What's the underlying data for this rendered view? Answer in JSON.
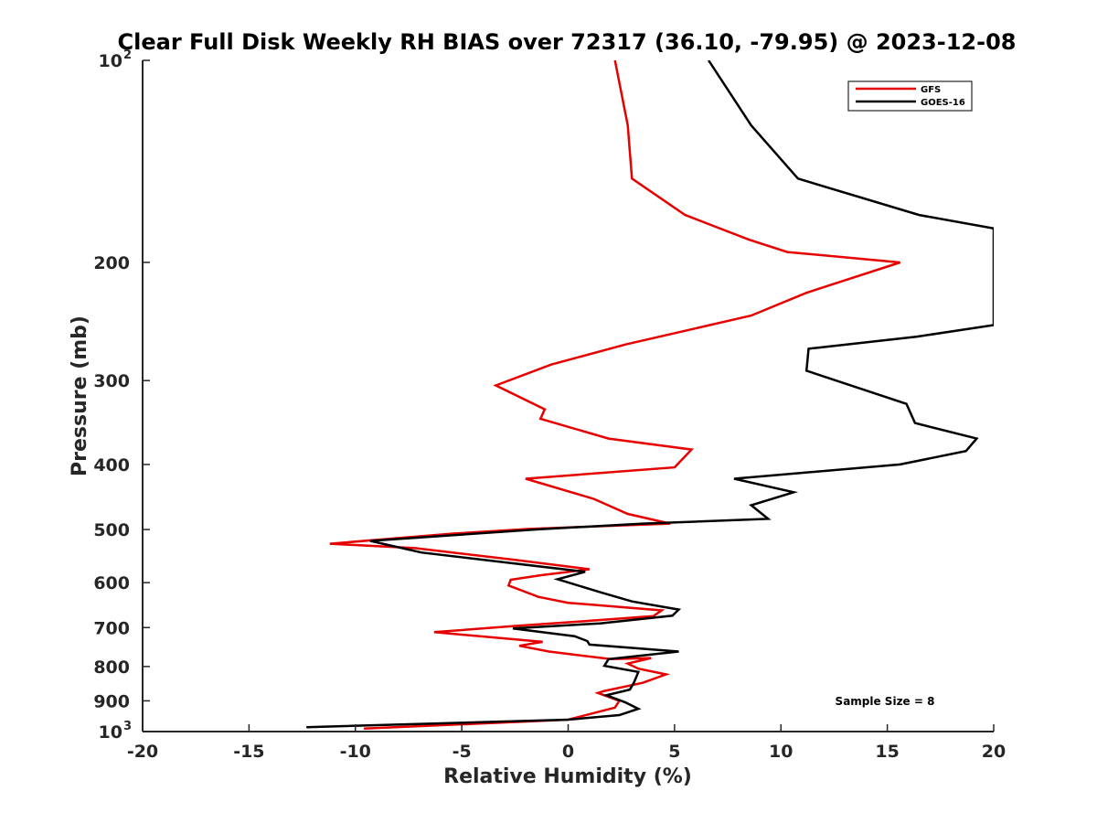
{
  "chart_data": {
    "type": "line",
    "title": "Clear Full Disk Weekly RH BIAS over 72317 (36.10, -79.95) @ 2023-12-08",
    "xlabel": "Relative Humidity (%)",
    "ylabel": "Pressure (mb)",
    "xlim": [
      -20,
      20
    ],
    "ylim": [
      100,
      1000
    ],
    "yscale": "log",
    "y_reversed": true,
    "grid": false,
    "legend_position": "top-right",
    "x_ticks": [
      "-20",
      "-15",
      "-10",
      "-5",
      "0",
      "5",
      "10",
      "15",
      "20"
    ],
    "y_ticks": [
      {
        "value": 100,
        "label": "10",
        "exp": "2"
      },
      {
        "value": 200,
        "label": "200"
      },
      {
        "value": 300,
        "label": "300"
      },
      {
        "value": 400,
        "label": "400"
      },
      {
        "value": 500,
        "label": "500"
      },
      {
        "value": 600,
        "label": "600"
      },
      {
        "value": 700,
        "label": "700"
      },
      {
        "value": 800,
        "label": "800"
      },
      {
        "value": 900,
        "label": "900"
      },
      {
        "value": 1000,
        "label": "10",
        "exp": "3"
      }
    ],
    "annotation": "Sample Size = 8",
    "series": [
      {
        "name": "GFS",
        "color": "#e60000",
        "points": [
          [
            2.2,
            100
          ],
          [
            2.8,
            125
          ],
          [
            3.0,
            150
          ],
          [
            5.5,
            170
          ],
          [
            8.5,
            185
          ],
          [
            10.3,
            193
          ],
          [
            15.6,
            200
          ],
          [
            11.2,
            222
          ],
          [
            8.6,
            240
          ],
          [
            2.7,
            265
          ],
          [
            -0.8,
            284
          ],
          [
            -3.4,
            305
          ],
          [
            -1.1,
            331
          ],
          [
            -1.3,
            342
          ],
          [
            1.9,
            366
          ],
          [
            5.8,
            380
          ],
          [
            5.0,
            404
          ],
          [
            -2.0,
            420
          ],
          [
            1.2,
            450
          ],
          [
            2.8,
            474
          ],
          [
            4.8,
            490
          ],
          [
            -1.8,
            499
          ],
          [
            -5.4,
            507
          ],
          [
            -11.2,
            525
          ],
          [
            -7.2,
            533
          ],
          [
            -2.5,
            555
          ],
          [
            1.0,
            573
          ],
          [
            -1.3,
            585
          ],
          [
            -2.7,
            594
          ],
          [
            -2.8,
            606
          ],
          [
            -1.4,
            630
          ],
          [
            0.0,
            643
          ],
          [
            4.4,
            660
          ],
          [
            4.0,
            673
          ],
          [
            0.7,
            685
          ],
          [
            -2.7,
            697
          ],
          [
            -6.3,
            711
          ],
          [
            -1.2,
            735
          ],
          [
            -2.3,
            745
          ],
          [
            -0.9,
            760
          ],
          [
            2.0,
            780
          ],
          [
            3.9,
            777
          ],
          [
            2.8,
            792
          ],
          [
            3.3,
            806
          ],
          [
            4.6,
            822
          ],
          [
            3.5,
            846
          ],
          [
            1.7,
            870
          ],
          [
            1.4,
            876
          ],
          [
            2.4,
            900
          ],
          [
            2.2,
            921
          ],
          [
            0.0,
            960
          ],
          [
            -9.6,
            990
          ]
        ]
      },
      {
        "name": "GOES-16",
        "color": "#000000",
        "points": [
          [
            6.6,
            100
          ],
          [
            8.6,
            125
          ],
          [
            10.8,
            150
          ],
          [
            16.5,
            170
          ],
          [
            20,
            178
          ],
          [
            20,
            248
          ],
          [
            16.4,
            258
          ],
          [
            11.3,
            269
          ],
          [
            11.2,
            290
          ],
          [
            15.9,
            325
          ],
          [
            16.3,
            347
          ],
          [
            19.2,
            366
          ],
          [
            18.7,
            382
          ],
          [
            15.6,
            400
          ],
          [
            7.8,
            420
          ],
          [
            10.6,
            440
          ],
          [
            8.6,
            460
          ],
          [
            9.4,
            482
          ],
          [
            3.5,
            490
          ],
          [
            -1.5,
            500
          ],
          [
            -9.3,
            520
          ],
          [
            -6.9,
            541
          ],
          [
            0.8,
            578
          ],
          [
            -0.5,
            593
          ],
          [
            1.5,
            620
          ],
          [
            3.0,
            640
          ],
          [
            5.2,
            658
          ],
          [
            4.9,
            672
          ],
          [
            1.5,
            690
          ],
          [
            -2.6,
            702
          ],
          [
            0.3,
            721
          ],
          [
            0.9,
            733
          ],
          [
            1.0,
            742
          ],
          [
            5.2,
            760
          ],
          [
            1.9,
            780
          ],
          [
            1.7,
            798
          ],
          [
            3.3,
            815
          ],
          [
            3.1,
            844
          ],
          [
            2.9,
            866
          ],
          [
            1.8,
            883
          ],
          [
            2.7,
            905
          ],
          [
            3.3,
            925
          ],
          [
            2.4,
            945
          ],
          [
            0.0,
            960
          ],
          [
            -12.3,
            985
          ]
        ]
      }
    ]
  }
}
